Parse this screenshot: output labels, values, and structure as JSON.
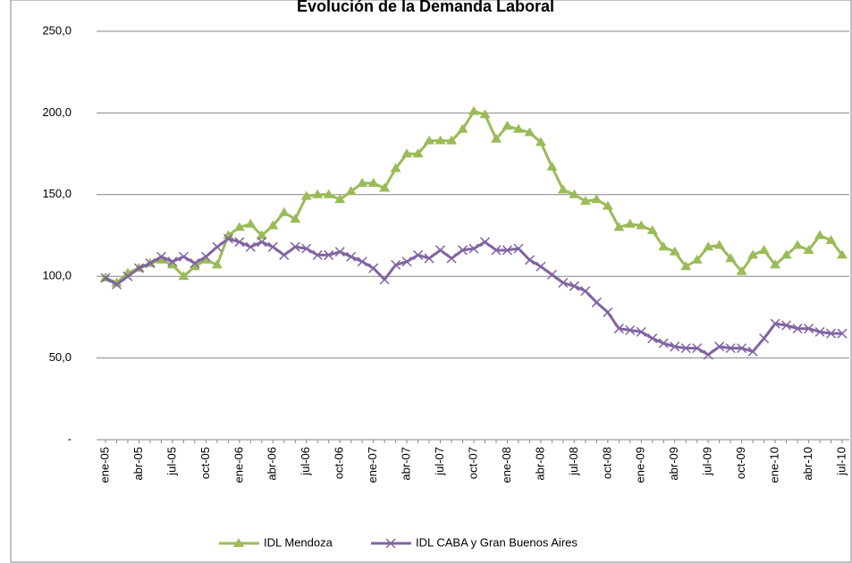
{
  "chart_data": {
    "type": "line",
    "title": "Evolución de la Demanda Laboral",
    "categories": [
      "ene-05",
      null,
      null,
      "abr-05",
      null,
      null,
      "jul-05",
      null,
      null,
      "oct-05",
      null,
      null,
      "ene-06",
      null,
      null,
      "abr-06",
      null,
      null,
      "jul-06",
      null,
      null,
      "oct-06",
      null,
      null,
      "ene-07",
      null,
      null,
      "abr-07",
      null,
      null,
      "jul-07",
      null,
      null,
      "oct-07",
      null,
      null,
      "ene-08",
      null,
      null,
      "abr-08",
      null,
      null,
      "jul-08",
      null,
      null,
      "oct-08",
      null,
      null,
      "ene-09",
      null,
      null,
      "abr-09",
      null,
      null,
      "jul-09",
      null,
      null,
      "oct-09",
      null,
      null,
      "ene-10",
      null,
      null,
      "abr-10",
      null,
      null,
      "jul-10"
    ],
    "series": [
      {
        "name": "IDL Mendoza",
        "color": "#9bbb59",
        "marker": "triangle",
        "values": [
          99,
          96,
          102,
          105,
          108,
          110,
          107,
          100,
          106,
          110,
          107,
          125,
          130,
          132,
          125,
          131,
          139,
          135,
          149,
          150,
          150,
          147,
          152,
          157,
          157,
          154,
          166,
          175,
          175,
          183,
          183,
          183,
          190,
          201,
          199,
          184,
          192,
          190,
          188,
          182,
          167,
          153,
          150,
          146,
          147,
          143,
          130,
          132,
          131,
          128,
          118,
          115,
          106,
          110,
          118,
          119,
          111,
          103,
          113,
          116,
          107,
          113,
          119,
          116,
          125,
          122,
          113
        ]
      },
      {
        "name": "IDL CABA y Gran Buenos Aires",
        "color": "#8064a2",
        "marker": "x",
        "values": [
          99,
          95,
          100,
          105,
          108,
          112,
          109,
          112,
          108,
          112,
          118,
          123,
          121,
          118,
          121,
          118,
          113,
          118,
          117,
          113,
          113,
          115,
          112,
          109,
          105,
          98,
          107,
          109,
          113,
          111,
          116,
          111,
          116,
          117,
          121,
          116,
          116,
          117,
          110,
          106,
          101,
          96,
          94,
          91,
          84,
          78,
          68,
          67,
          66,
          62,
          59,
          57,
          56,
          56,
          52,
          57,
          56,
          56,
          54,
          62,
          71,
          70,
          68,
          68,
          66,
          65,
          65
        ]
      }
    ],
    "ylim": [
      0,
      250
    ],
    "yticks": [
      {
        "value": 0,
        "label": "-"
      },
      {
        "value": 50,
        "label": "50,0"
      },
      {
        "value": 100,
        "label": "100,0"
      },
      {
        "value": 150,
        "label": "150,0"
      },
      {
        "value": 200,
        "label": "200,0"
      },
      {
        "value": 250,
        "label": "250,0"
      }
    ],
    "grid": true,
    "legend": "bottom"
  }
}
